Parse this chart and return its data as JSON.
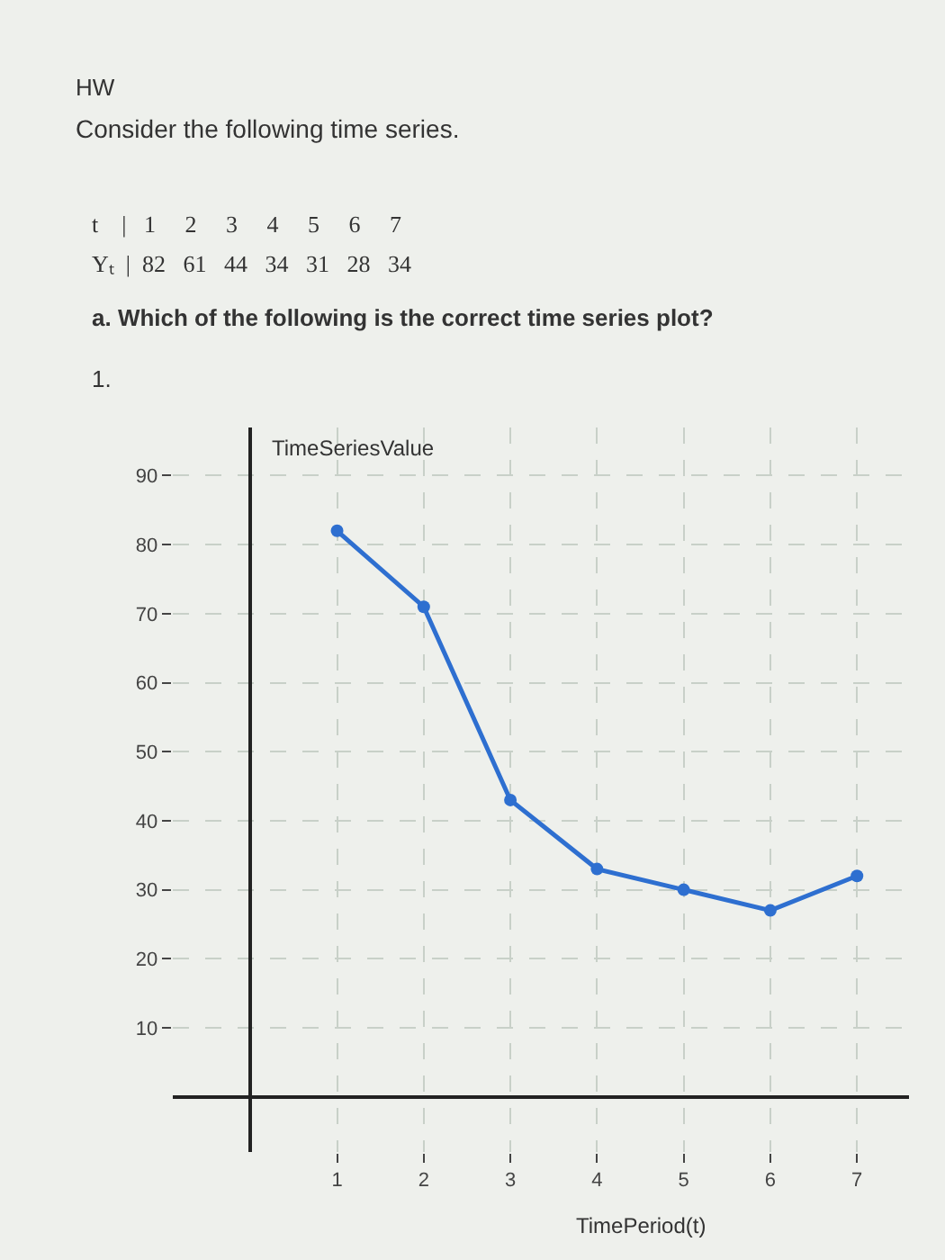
{
  "chart_data": {
    "type": "line",
    "title": "Consider the following time series.",
    "annotations": [
      "HW",
      "t    |   1     2     3     4     5     6     7",
      "Yₜ  |  82   61   44   34   31   28   34",
      "a. Which of the following is the correct time series plot?",
      "1."
    ],
    "x": [
      1,
      2,
      3,
      4,
      5,
      6,
      7
    ],
    "series": [
      {
        "color": "#2e6fd0",
        "values": [
          82,
          71,
          43,
          33,
          30,
          27,
          32
        ]
      }
    ],
    "xlabel": "TimePeriod(t)",
    "ylabel": "TimeSeriesValue",
    "xlim": [
      -0.9,
      7.6
    ],
    "ylim": [
      -8,
      97
    ],
    "xticks": [
      1,
      2,
      3,
      4,
      5,
      6,
      7
    ],
    "yticks": [
      10,
      20,
      30,
      40,
      50,
      60,
      70,
      80,
      90
    ],
    "grid": true,
    "marker": "circle",
    "line_style": "solid"
  }
}
